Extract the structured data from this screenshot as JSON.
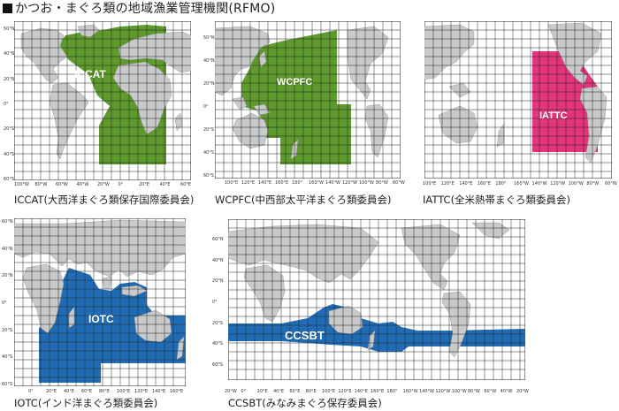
{
  "title": "かつお・まぐろ類の地域漁業管理機関(RFMO)",
  "colors": {
    "green": "#5e9a2c",
    "pink": "#e4347a",
    "blue": "#1f6cb4",
    "land": "#c9cacb",
    "grid": "#222222"
  },
  "maps": [
    {
      "id": "iccat",
      "label": "ICCAT",
      "caption": "ICCAT(大西洋まぐろ類保存国際委員会)",
      "lat_labels": [
        "50°N",
        "40°N",
        "20°N",
        "0°",
        "20°S",
        "40°S",
        "60°S"
      ],
      "lon_labels": [
        "100°W",
        "80°W",
        "60°W",
        "40°W",
        "20°W",
        "0°",
        "20°E",
        "40°E",
        "60°E"
      ]
    },
    {
      "id": "wcpfc",
      "label": "WCPFC",
      "caption": "WCPFC(中西部太平洋まぐろ類委員会)",
      "lat_labels": [
        "50°N",
        "40°N",
        "20°N",
        "0°",
        "20°S",
        "40°S",
        "60°S"
      ],
      "lon_labels": [
        "100°E",
        "120°E",
        "140°E",
        "160°E",
        "180°",
        "160°W",
        "140°W",
        "120°W",
        "100°W",
        "80°W",
        "60°W"
      ]
    },
    {
      "id": "iattc",
      "label": "IATTC",
      "caption": "IATTC(全米熱帯まぐろ類委員会)",
      "lat_labels": [],
      "lon_labels": [
        "100°E",
        "120°E",
        "140°E",
        "160°E",
        "180°",
        "160°W",
        "140°W",
        "120°W",
        "100°W",
        "80°W",
        "60°W"
      ]
    },
    {
      "id": "iotc",
      "label": "IOTC",
      "caption": "IOTC(インド洋まぐろ類委員会)",
      "lat_labels": [
        "60°N",
        "40°N",
        "20°N",
        "0°",
        "20°S",
        "40°S",
        "60°S"
      ],
      "lon_labels": [
        "0°",
        "20°E",
        "40°E",
        "60°E",
        "80°E",
        "100°E",
        "120°E",
        "140°E",
        "160°E"
      ]
    },
    {
      "id": "ccsbt",
      "label": "CCSBT",
      "caption": "CCSBT(みなみまぐろ保存委員会)",
      "lat_labels": [
        "60°N",
        "40°N",
        "20°N",
        "0°",
        "20°S",
        "40°S",
        "60°S"
      ],
      "lon_labels": [
        "20°W",
        "0°",
        "20°E",
        "40°E",
        "60°E",
        "80°E",
        "100°E",
        "120°E",
        "140°E",
        "160°E",
        "180°",
        "160°W",
        "140°W",
        "120°W",
        "100°W",
        "80°W",
        "60°W",
        "40°W",
        "20°W"
      ]
    }
  ]
}
